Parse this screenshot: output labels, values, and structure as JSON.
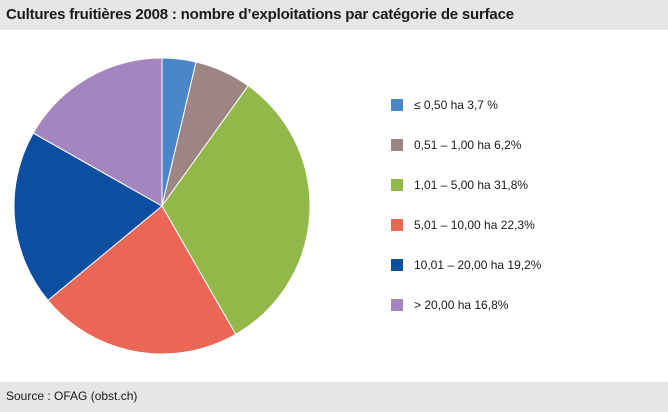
{
  "title": "Cultures fruitières 2008 : nombre d’exploitations par catégorie de surface",
  "source": "Source : OFAG (obst.ch)",
  "chart_data": {
    "type": "pie",
    "title": "Cultures fruitières 2008 : nombre d’exploitations par catégorie de surface",
    "legend_position": "right",
    "slices": [
      {
        "label": "≤ 0,50 ha 3,7 %",
        "category": "≤ 0,50 ha",
        "value": 3.7,
        "color": "#4a86c8"
      },
      {
        "label": "0,51 – 1,00 ha 6,2%",
        "category": "0,51 – 1,00 ha",
        "value": 6.2,
        "color": "#9c8582"
      },
      {
        "label": "1,01 – 5,00 ha 31,8%",
        "category": "1,01 – 5,00 ha",
        "value": 31.8,
        "color": "#93b84a"
      },
      {
        "label": "5,01 – 10,00 ha 22,3%",
        "category": "5,01 – 10,00 ha",
        "value": 22.3,
        "color": "#ea6657"
      },
      {
        "label": "10,01 – 20,00 ha 19,2%",
        "category": "10,01 – 20,00 ha",
        "value": 19.2,
        "color": "#0c4e9f"
      },
      {
        "label": "> 20,00 ha 16,8%",
        "category": "> 20,00 ha",
        "value": 16.8,
        "color": "#a485c0"
      }
    ]
  }
}
